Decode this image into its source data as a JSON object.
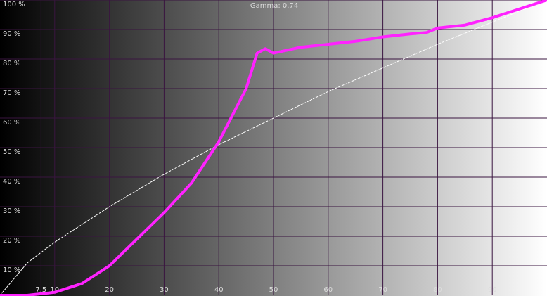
{
  "chart_data": {
    "type": "line",
    "title": "Gamma: 0.74",
    "xlim": [
      0,
      100
    ],
    "ylim": [
      0,
      100
    ],
    "xticks": [
      7.5,
      10,
      20,
      30,
      40,
      50,
      60,
      70,
      80,
      90
    ],
    "yticks": [
      {
        "value": 10,
        "label": "10 %"
      },
      {
        "value": 20,
        "label": "20 %"
      },
      {
        "value": 30,
        "label": "30 %"
      },
      {
        "value": 40,
        "label": "40 %"
      },
      {
        "value": 50,
        "label": "50 %"
      },
      {
        "value": 60,
        "label": "60 %"
      },
      {
        "value": 70,
        "label": "70 %"
      },
      {
        "value": 80,
        "label": "80 %"
      },
      {
        "value": 90,
        "label": "90 %"
      },
      {
        "value": 100,
        "label": "100 %"
      }
    ],
    "grid": true,
    "series": [
      {
        "color": "#ffffff",
        "dashed": true,
        "x": [
          0,
          5,
          10,
          20,
          30,
          40,
          50,
          60,
          70,
          80,
          90,
          100
        ],
        "values": [
          0,
          11,
          18,
          30,
          41,
          51,
          60,
          69,
          77,
          85,
          92.5,
          100
        ]
      },
      {
        "color": "#ff22ff",
        "dashed": false,
        "x": [
          0,
          5,
          10,
          15,
          20,
          25,
          30,
          35,
          40,
          45,
          47,
          48.5,
          50,
          55,
          60,
          65,
          70,
          75,
          78,
          80,
          85,
          90,
          95,
          100
        ],
        "values": [
          0,
          0,
          1,
          4,
          10,
          19,
          28,
          38,
          52,
          70,
          82,
          83.5,
          82,
          84,
          85,
          86,
          87.5,
          88.5,
          89,
          90.5,
          91.5,
          94,
          97,
          100
        ]
      }
    ]
  }
}
